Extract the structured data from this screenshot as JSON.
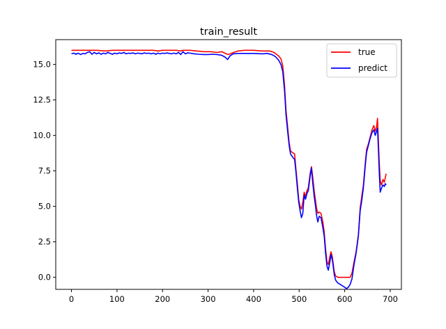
{
  "chart_data": {
    "type": "line",
    "title": "train_result",
    "xlabel": "",
    "ylabel": "",
    "xlim": [
      -34.5,
      724.5
    ],
    "ylim": [
      -0.85,
      16.75
    ],
    "x_ticks": [
      0,
      100,
      200,
      300,
      400,
      500,
      600,
      700
    ],
    "y_ticks": [
      0.0,
      2.5,
      5.0,
      7.5,
      10.0,
      12.5,
      15.0
    ],
    "x_tick_labels": [
      "0",
      "100",
      "200",
      "300",
      "400",
      "500",
      "600",
      "700"
    ],
    "y_tick_labels": [
      "0.0",
      "2.5",
      "5.0",
      "7.5",
      "10.0",
      "12.5",
      "15.0"
    ],
    "grid": false,
    "legend": {
      "position": "top-right",
      "entries": [
        "true",
        "predict"
      ]
    },
    "series": [
      {
        "name": "true",
        "color": "#ff0000",
        "points": [
          [
            0,
            16.0
          ],
          [
            30,
            16.0
          ],
          [
            55,
            16.0
          ],
          [
            75,
            15.95
          ],
          [
            90,
            16.0
          ],
          [
            120,
            16.0
          ],
          [
            150,
            16.0
          ],
          [
            180,
            16.0
          ],
          [
            190,
            15.95
          ],
          [
            200,
            16.0
          ],
          [
            230,
            16.0
          ],
          [
            240,
            15.95
          ],
          [
            245,
            16.0
          ],
          [
            260,
            16.0
          ],
          [
            275,
            15.95
          ],
          [
            290,
            15.9
          ],
          [
            305,
            15.9
          ],
          [
            320,
            15.85
          ],
          [
            330,
            15.9
          ],
          [
            340,
            15.75
          ],
          [
            345,
            15.7
          ],
          [
            352,
            15.8
          ],
          [
            365,
            15.95
          ],
          [
            380,
            16.0
          ],
          [
            400,
            16.0
          ],
          [
            420,
            15.95
          ],
          [
            435,
            15.95
          ],
          [
            445,
            15.85
          ],
          [
            455,
            15.6
          ],
          [
            460,
            15.4
          ],
          [
            464,
            14.9
          ],
          [
            468,
            13.5
          ],
          [
            471,
            11.8
          ],
          [
            475,
            10.5
          ],
          [
            478,
            9.5
          ],
          [
            481,
            8.9
          ],
          [
            485,
            8.8
          ],
          [
            490,
            8.7
          ],
          [
            493,
            7.6
          ],
          [
            496,
            6.6
          ],
          [
            499,
            5.5
          ],
          [
            502,
            5.0
          ],
          [
            505,
            4.8
          ],
          [
            508,
            5.3
          ],
          [
            511,
            6.0
          ],
          [
            514,
            5.7
          ],
          [
            517,
            6.1
          ],
          [
            520,
            6.3
          ],
          [
            524,
            7.3
          ],
          [
            527,
            7.8
          ],
          [
            530,
            7.0
          ],
          [
            533,
            6.1
          ],
          [
            536,
            5.4
          ],
          [
            538,
            4.9
          ],
          [
            541,
            4.5
          ],
          [
            544,
            4.6
          ],
          [
            548,
            4.5
          ],
          [
            552,
            3.9
          ],
          [
            555,
            3.2
          ],
          [
            558,
            2.0
          ],
          [
            561,
            1.1
          ],
          [
            564,
            0.9
          ],
          [
            567,
            1.4
          ],
          [
            570,
            1.8
          ],
          [
            573,
            1.4
          ],
          [
            577,
            0.4
          ],
          [
            580,
            0.1
          ],
          [
            585,
            0.0
          ],
          [
            595,
            0.0
          ],
          [
            605,
            0.0
          ],
          [
            612,
            0.0
          ],
          [
            616,
            0.3
          ],
          [
            620,
            1.0
          ],
          [
            625,
            1.8
          ],
          [
            630,
            3.0
          ],
          [
            634,
            4.9
          ],
          [
            637,
            5.6
          ],
          [
            641,
            6.5
          ],
          [
            645,
            8.0
          ],
          [
            648,
            9.0
          ],
          [
            652,
            9.4
          ],
          [
            656,
            9.9
          ],
          [
            660,
            10.4
          ],
          [
            664,
            10.7
          ],
          [
            667,
            10.3
          ],
          [
            670,
            10.6
          ],
          [
            672,
            11.2
          ],
          [
            674,
            9.6
          ],
          [
            676,
            8.0
          ],
          [
            678,
            6.8
          ],
          [
            681,
            6.5
          ],
          [
            684,
            6.9
          ],
          [
            687,
            6.7
          ],
          [
            689,
            7.0
          ],
          [
            691,
            7.3
          ]
        ]
      },
      {
        "name": "predict",
        "color": "#0000ff",
        "points": [
          [
            0,
            15.75
          ],
          [
            5,
            15.8
          ],
          [
            10,
            15.72
          ],
          [
            15,
            15.8
          ],
          [
            20,
            15.7
          ],
          [
            25,
            15.78
          ],
          [
            30,
            15.75
          ],
          [
            35,
            15.85
          ],
          [
            40,
            15.9
          ],
          [
            45,
            15.72
          ],
          [
            50,
            15.85
          ],
          [
            55,
            15.75
          ],
          [
            60,
            15.82
          ],
          [
            65,
            15.72
          ],
          [
            70,
            15.8
          ],
          [
            75,
            15.75
          ],
          [
            80,
            15.85
          ],
          [
            85,
            15.78
          ],
          [
            90,
            15.72
          ],
          [
            95,
            15.8
          ],
          [
            100,
            15.75
          ],
          [
            105,
            15.82
          ],
          [
            110,
            15.78
          ],
          [
            115,
            15.85
          ],
          [
            120,
            15.75
          ],
          [
            125,
            15.8
          ],
          [
            130,
            15.78
          ],
          [
            135,
            15.82
          ],
          [
            140,
            15.75
          ],
          [
            145,
            15.8
          ],
          [
            150,
            15.78
          ],
          [
            155,
            15.75
          ],
          [
            160,
            15.82
          ],
          [
            165,
            15.78
          ],
          [
            170,
            15.8
          ],
          [
            175,
            15.75
          ],
          [
            180,
            15.8
          ],
          [
            185,
            15.72
          ],
          [
            190,
            15.8
          ],
          [
            195,
            15.75
          ],
          [
            200,
            15.8
          ],
          [
            205,
            15.78
          ],
          [
            210,
            15.82
          ],
          [
            215,
            15.78
          ],
          [
            220,
            15.75
          ],
          [
            225,
            15.8
          ],
          [
            230,
            15.75
          ],
          [
            235,
            15.85
          ],
          [
            240,
            15.7
          ],
          [
            245,
            15.9
          ],
          [
            250,
            15.75
          ],
          [
            255,
            15.82
          ],
          [
            260,
            15.8
          ],
          [
            270,
            15.75
          ],
          [
            280,
            15.72
          ],
          [
            290,
            15.7
          ],
          [
            300,
            15.7
          ],
          [
            310,
            15.72
          ],
          [
            320,
            15.7
          ],
          [
            330,
            15.65
          ],
          [
            338,
            15.5
          ],
          [
            343,
            15.35
          ],
          [
            348,
            15.6
          ],
          [
            355,
            15.75
          ],
          [
            365,
            15.78
          ],
          [
            380,
            15.78
          ],
          [
            400,
            15.78
          ],
          [
            420,
            15.75
          ],
          [
            430,
            15.78
          ],
          [
            440,
            15.7
          ],
          [
            448,
            15.55
          ],
          [
            455,
            15.3
          ],
          [
            460,
            15.0
          ],
          [
            464,
            14.5
          ],
          [
            468,
            13.1
          ],
          [
            471,
            11.5
          ],
          [
            475,
            10.2
          ],
          [
            478,
            9.3
          ],
          [
            481,
            8.7
          ],
          [
            485,
            8.5
          ],
          [
            490,
            8.3
          ],
          [
            493,
            7.4
          ],
          [
            496,
            6.3
          ],
          [
            499,
            5.3
          ],
          [
            502,
            4.7
          ],
          [
            505,
            4.2
          ],
          [
            508,
            4.5
          ],
          [
            511,
            5.8
          ],
          [
            514,
            5.5
          ],
          [
            517,
            5.9
          ],
          [
            520,
            6.1
          ],
          [
            524,
            7.1
          ],
          [
            527,
            7.7
          ],
          [
            530,
            6.6
          ],
          [
            533,
            5.7
          ],
          [
            536,
            5.0
          ],
          [
            538,
            4.4
          ],
          [
            541,
            3.9
          ],
          [
            544,
            4.3
          ],
          [
            548,
            4.2
          ],
          [
            552,
            3.5
          ],
          [
            555,
            2.9
          ],
          [
            558,
            1.7
          ],
          [
            561,
            0.8
          ],
          [
            564,
            0.5
          ],
          [
            567,
            1.0
          ],
          [
            570,
            1.6
          ],
          [
            573,
            1.2
          ],
          [
            577,
            0.2
          ],
          [
            580,
            -0.2
          ],
          [
            585,
            -0.4
          ],
          [
            590,
            -0.5
          ],
          [
            595,
            -0.6
          ],
          [
            600,
            -0.7
          ],
          [
            604,
            -0.8
          ],
          [
            608,
            -0.7
          ],
          [
            612,
            -0.5
          ],
          [
            616,
            -0.1
          ],
          [
            620,
            0.8
          ],
          [
            625,
            1.7
          ],
          [
            630,
            2.9
          ],
          [
            634,
            4.7
          ],
          [
            637,
            5.3
          ],
          [
            641,
            6.3
          ],
          [
            645,
            7.8
          ],
          [
            648,
            8.8
          ],
          [
            652,
            9.3
          ],
          [
            656,
            9.8
          ],
          [
            660,
            10.2
          ],
          [
            664,
            10.4
          ],
          [
            667,
            10.0
          ],
          [
            670,
            10.3
          ],
          [
            672,
            10.5
          ],
          [
            674,
            9.0
          ],
          [
            676,
            7.3
          ],
          [
            678,
            6.0
          ],
          [
            681,
            6.3
          ],
          [
            684,
            6.5
          ],
          [
            687,
            6.4
          ],
          [
            689,
            6.6
          ],
          [
            691,
            6.5
          ]
        ]
      }
    ]
  }
}
